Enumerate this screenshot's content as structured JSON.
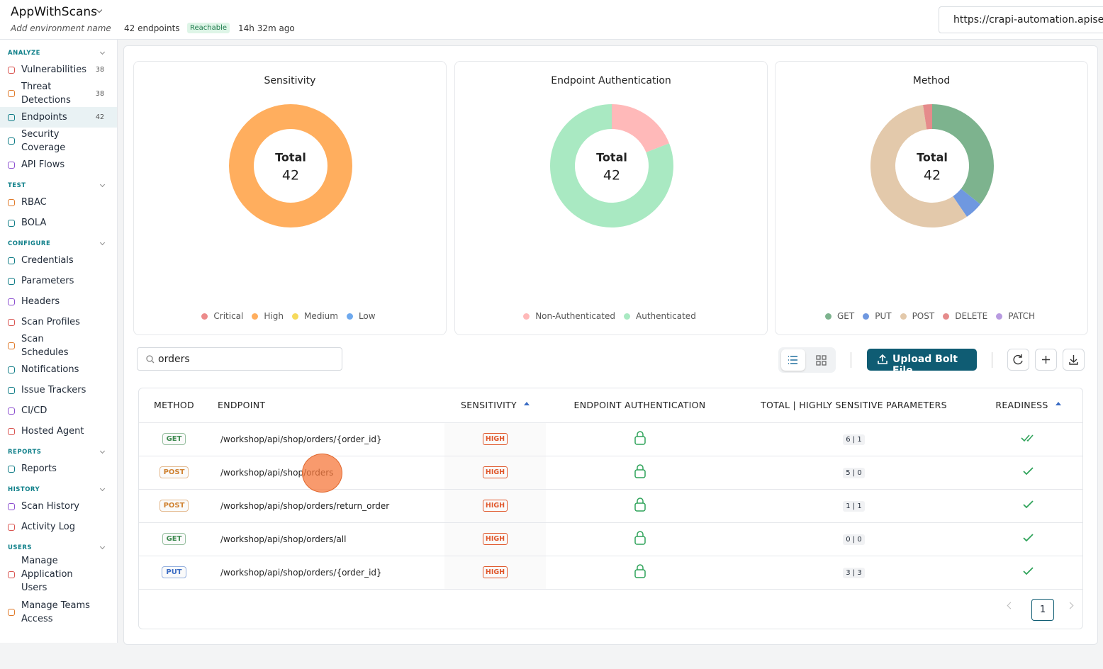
{
  "header": {
    "app_name": "AppWithScans",
    "env_placeholder": "Add environment name",
    "endpoints": "42 endpoints",
    "status": "Reachable",
    "last_seen": "14h 32m ago",
    "url": "https://crapi-automation.apisec"
  },
  "sidebar": [
    {
      "section": "ANALYZE",
      "items": [
        {
          "label": "Vulnerabilities",
          "count": 38
        },
        {
          "label": "Threat Detections",
          "count": 38
        },
        {
          "label": "Endpoints",
          "count": 42
        },
        {
          "label": "Security Coverage"
        },
        {
          "label": "API Flows"
        }
      ]
    },
    {
      "section": "TEST",
      "items": [
        {
          "label": "RBAC"
        },
        {
          "label": "BOLA"
        }
      ]
    },
    {
      "section": "CONFIGURE",
      "items": [
        {
          "label": "Credentials"
        },
        {
          "label": "Parameters"
        },
        {
          "label": "Headers"
        },
        {
          "label": "Scan Profiles"
        },
        {
          "label": "Scan Schedules"
        },
        {
          "label": "Notifications"
        },
        {
          "label": "Issue Trackers"
        },
        {
          "label": "CI/CD"
        },
        {
          "label": "Hosted Agent"
        }
      ]
    },
    {
      "section": "REPORTS",
      "items": [
        {
          "label": "Reports"
        }
      ]
    },
    {
      "section": "HISTORY",
      "items": [
        {
          "label": "Scan History"
        },
        {
          "label": "Activity Log"
        }
      ]
    },
    {
      "section": "USERS",
      "items": [
        {
          "label": "Manage Application Users"
        },
        {
          "label": "Manage Teams Access"
        }
      ]
    }
  ],
  "chart_data": [
    {
      "type": "pie",
      "title": "Sensitivity",
      "center_label": "Total",
      "center_value": 42,
      "categories": [
        "Critical",
        "High",
        "Medium",
        "Low"
      ],
      "values": [
        0,
        42,
        0,
        0
      ],
      "colors": [
        "#ec8b8b",
        "#ffae5e",
        "#f6da5c",
        "#6ea9ee"
      ]
    },
    {
      "type": "pie",
      "title": "Endpoint Authentication",
      "center_label": "Total",
      "center_value": 42,
      "categories": [
        "Non-Authenticated",
        "Authenticated"
      ],
      "values": [
        8,
        34
      ],
      "colors": [
        "#ffb9b9",
        "#a9e9c2"
      ]
    },
    {
      "type": "pie",
      "title": "Method",
      "center_label": "Total",
      "center_value": 42,
      "categories": [
        "GET",
        "PUT",
        "POST",
        "DELETE",
        "PATCH"
      ],
      "values": [
        15,
        2,
        24,
        1,
        0
      ],
      "colors": [
        "#7db38e",
        "#6f98e0",
        "#e3c9ab",
        "#e58b8b",
        "#b89be0"
      ]
    }
  ],
  "toolbar": {
    "search": "orders",
    "upload_button": "Upload Bolt File"
  },
  "table": {
    "columns": [
      "METHOD",
      "ENDPOINT",
      "SENSITIVITY",
      "ENDPOINT AUTHENTICATION",
      "TOTAL | HIGHLY SENSITIVE PARAMETERS",
      "READINESS"
    ],
    "rows": [
      {
        "method": "GET",
        "method_color": "#3d8a4f",
        "endpoint": "/workshop/api/shop/orders/{order_id}",
        "sensitivity": "HIGH",
        "params": "6 | 1"
      },
      {
        "method": "POST",
        "method_color": "#d08232",
        "endpoint": "/workshop/api/shop/orders",
        "sensitivity": "HIGH",
        "params": "5 | 0"
      },
      {
        "method": "POST",
        "method_color": "#d08232",
        "endpoint": "/workshop/api/shop/orders/return_order",
        "sensitivity": "HIGH",
        "params": "1 | 1"
      },
      {
        "method": "GET",
        "method_color": "#3d8a4f",
        "endpoint": "/workshop/api/shop/orders/all",
        "sensitivity": "HIGH",
        "params": "0 | 0"
      },
      {
        "method": "PUT",
        "method_color": "#3b6cc4",
        "endpoint": "/workshop/api/shop/orders/{order_id}",
        "sensitivity": "HIGH",
        "params": "3 | 3"
      }
    ]
  },
  "pagination": {
    "page": 1
  }
}
